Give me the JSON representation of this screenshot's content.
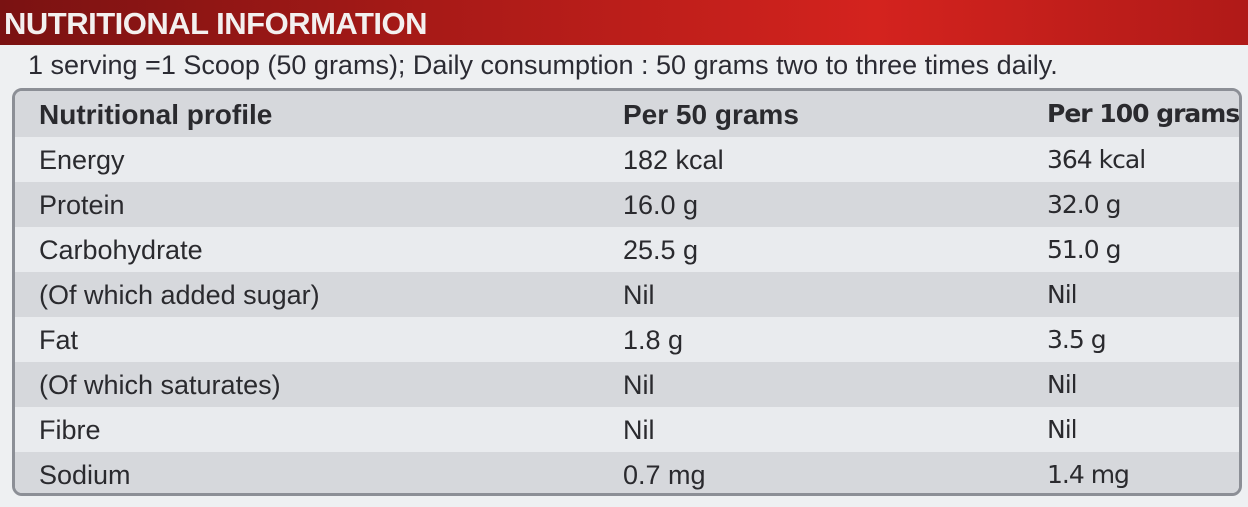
{
  "header": {
    "title": "NUTRITIONAL INFORMATION",
    "note": "1 serving =1 Scoop (50 grams); Daily consumption : 50 grams two to three times daily."
  },
  "table": {
    "columns": [
      "Nutritional profile",
      "Per 50 grams",
      "Per 100 grams"
    ],
    "rows": [
      [
        "Energy",
        "182 kcal",
        "364 kcal"
      ],
      [
        "Protein",
        "16.0 g",
        "32.0 g"
      ],
      [
        "Carbohydrate",
        "25.5 g",
        "51.0 g"
      ],
      [
        "(Of which added sugar)",
        "Nil",
        "Nil"
      ],
      [
        "Fat",
        "1.8 g",
        "3.5 g"
      ],
      [
        "(Of which saturates)",
        "Nil",
        "Nil"
      ],
      [
        "Fibre",
        "Nil",
        "Nil"
      ],
      [
        "Sodium",
        "0.7 mg",
        "1.4 mg"
      ]
    ]
  }
}
